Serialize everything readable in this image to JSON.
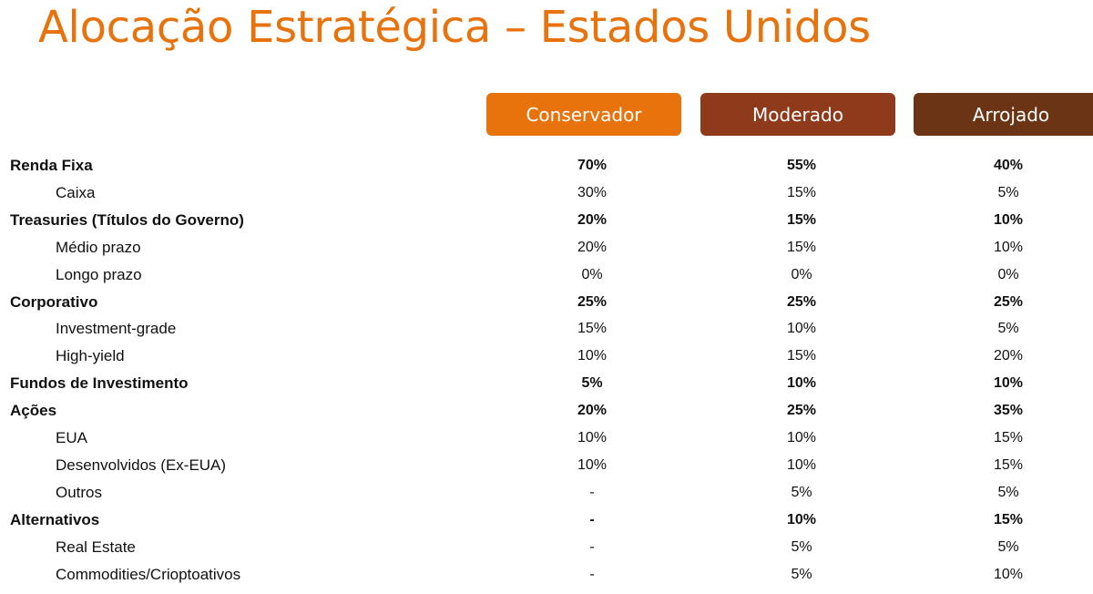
{
  "title": "Alocação Estratégica – Estados Unidos",
  "colors": {
    "title": "#e8720c",
    "conservador": "#e8720c",
    "moderado": "#8f3a1a",
    "arrojado": "#6b3515"
  },
  "profiles": [
    "Conservador",
    "Moderado",
    "Arrojado"
  ],
  "rows": [
    {
      "label": "Renda Fixa",
      "level": "main",
      "values": [
        "70%",
        "55%",
        "40%"
      ]
    },
    {
      "label": "Caixa",
      "level": "sub",
      "values": [
        "30%",
        "15%",
        "5%"
      ]
    },
    {
      "label": "Treasuries (Títulos do Governo)",
      "level": "main",
      "values": [
        "20%",
        "15%",
        "10%"
      ]
    },
    {
      "label": "Médio prazo",
      "level": "sub",
      "values": [
        "20%",
        "15%",
        "10%"
      ]
    },
    {
      "label": "Longo prazo",
      "level": "sub",
      "values": [
        "0%",
        "0%",
        "0%"
      ]
    },
    {
      "label": "Corporativo",
      "level": "main",
      "values": [
        "25%",
        "25%",
        "25%"
      ]
    },
    {
      "label": "Investment-grade",
      "level": "sub",
      "values": [
        "15%",
        "10%",
        "5%"
      ]
    },
    {
      "label": "High-yield",
      "level": "sub",
      "values": [
        "10%",
        "15%",
        "20%"
      ]
    },
    {
      "label": "Fundos de Investimento",
      "level": "main",
      "values": [
        "5%",
        "10%",
        "10%"
      ]
    },
    {
      "label": "Ações",
      "level": "main",
      "values": [
        "20%",
        "25%",
        "35%"
      ]
    },
    {
      "label": "EUA",
      "level": "sub",
      "values": [
        "10%",
        "10%",
        "15%"
      ]
    },
    {
      "label": "Desenvolvidos (Ex-EUA)",
      "level": "sub",
      "values": [
        "10%",
        "10%",
        "15%"
      ]
    },
    {
      "label": "Outros",
      "level": "sub",
      "values": [
        "-",
        "5%",
        "5%"
      ]
    },
    {
      "label": "Alternativos",
      "level": "main",
      "values": [
        "-",
        "10%",
        "15%"
      ]
    },
    {
      "label": "Real Estate",
      "level": "sub",
      "values": [
        "-",
        "5%",
        "5%"
      ]
    },
    {
      "label": "Commodities/Crioptoativos",
      "level": "sub",
      "values": [
        "-",
        "5%",
        "10%"
      ]
    }
  ]
}
